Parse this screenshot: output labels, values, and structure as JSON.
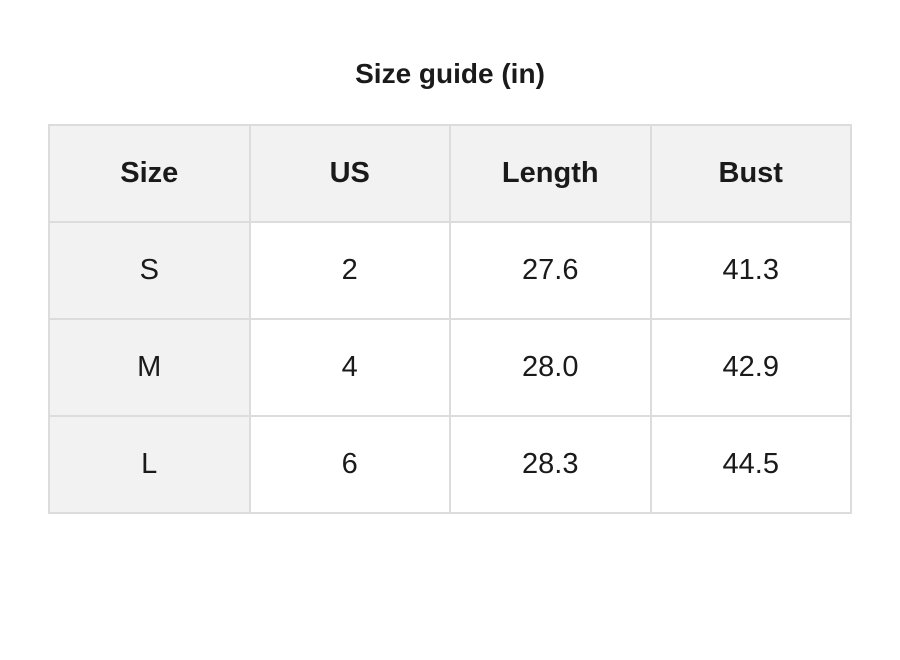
{
  "title": "Size guide (in)",
  "table": {
    "headers": [
      "Size",
      "US",
      "Length",
      "Bust"
    ],
    "rows": [
      [
        "S",
        "2",
        "27.6",
        "41.3"
      ],
      [
        "M",
        "4",
        "28.0",
        "42.9"
      ],
      [
        "L",
        "6",
        "28.3",
        "44.5"
      ]
    ]
  }
}
